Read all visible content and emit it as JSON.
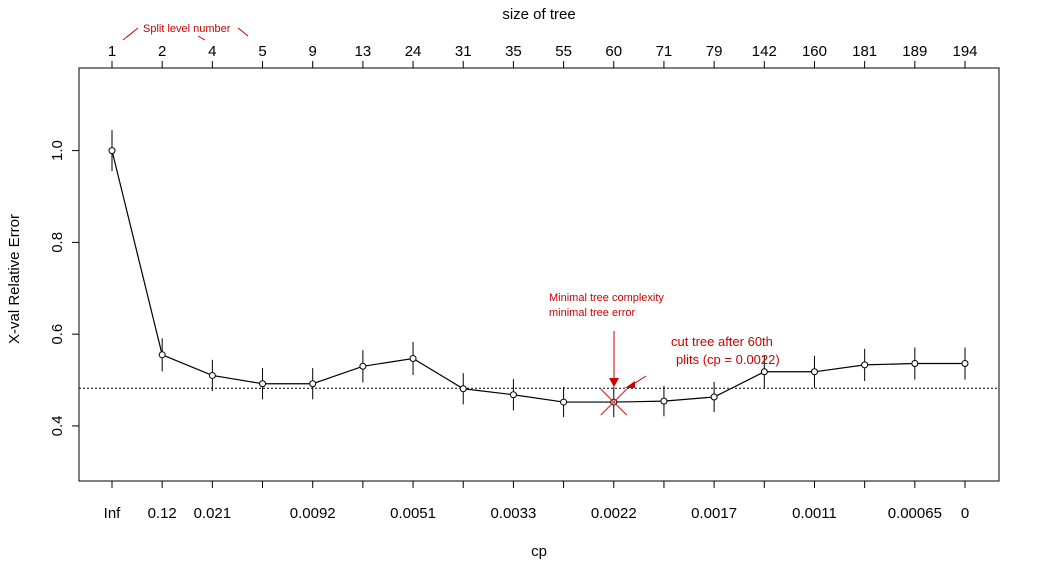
{
  "chart_data": {
    "type": "line",
    "top_title": "size of tree",
    "xlabel": "cp",
    "ylabel": "X-val Relative Error",
    "sizes": [
      "1",
      "2",
      "4",
      "5",
      "9",
      "13",
      "24",
      "31",
      "35",
      "55",
      "60",
      "71",
      "79",
      "142",
      "160",
      "181",
      "189",
      "194"
    ],
    "cp_labels": [
      "Inf",
      "0.12",
      "0.021",
      "",
      "0.0092",
      "",
      "0.0051",
      "",
      "0.0033",
      "",
      "0.0022",
      "",
      "0.0017",
      "",
      "0.0011",
      "",
      "0.00065",
      "0"
    ],
    "values": [
      1.0,
      0.555,
      0.51,
      0.492,
      0.492,
      0.53,
      0.547,
      0.481,
      0.468,
      0.452,
      0.452,
      0.454,
      0.463,
      0.518,
      0.518,
      0.533,
      0.536,
      0.536
    ],
    "errors": [
      0.045,
      0.036,
      0.034,
      0.034,
      0.034,
      0.035,
      0.036,
      0.034,
      0.034,
      0.033,
      0.033,
      0.033,
      0.033,
      0.035,
      0.035,
      0.035,
      0.035,
      0.035
    ],
    "reference_line": 0.482,
    "ylim": [
      0.28,
      1.18
    ],
    "yticks": [
      0.4,
      0.6,
      0.8,
      1.0
    ],
    "ytick_labels": [
      "0.4",
      "0.6",
      "0.8",
      "1.0"
    ],
    "highlight_index": 10,
    "annotations": {
      "split_label": "Split level number",
      "min_line1": "Minimal tree complexity",
      "min_line2": "minimal tree error",
      "cut_line1": "cut tree after 60th",
      "cut_line2": "plits (cp = 0.0022)"
    },
    "colors": {
      "line": "#000000",
      "annotation": "#cc0000",
      "highlight": "#e03030"
    },
    "grid": false
  }
}
